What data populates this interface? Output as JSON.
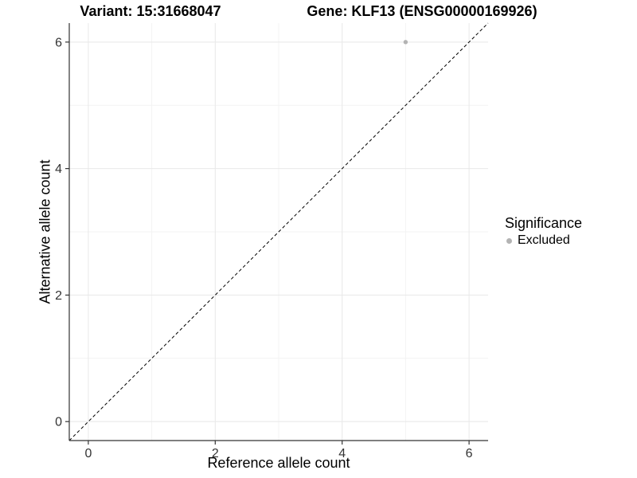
{
  "figure": {
    "title_left": "Variant: 15:31668047",
    "title_right": "Gene: KLF13 (ENSG00000169926)"
  },
  "legend": {
    "title": "Significance",
    "entries": [
      {
        "label": "Excluded",
        "color": "#b3b3b3"
      }
    ]
  },
  "chart_data": {
    "type": "scatter",
    "title": "Variant: 15:31668047 | Gene: KLF13 (ENSG00000169926)",
    "xlabel": "Reference allele count",
    "ylabel": "Alternative allele count",
    "xlim": [
      -0.3,
      6.3
    ],
    "ylim": [
      -0.3,
      6.3
    ],
    "x_ticks": [
      0,
      2,
      4,
      6
    ],
    "y_ticks": [
      0,
      2,
      4,
      6
    ],
    "x_minor_ticks": [
      1,
      3,
      5
    ],
    "y_minor_ticks": [
      1,
      3,
      5
    ],
    "grid": true,
    "legend_position": "right",
    "series": [
      {
        "name": "Excluded",
        "color": "#b3b3b3",
        "point_radius": 2.7,
        "points": [
          {
            "x": 5,
            "y": 6
          }
        ]
      }
    ],
    "reference_line": {
      "kind": "identity",
      "style": "dashed",
      "color": "#000000",
      "from": [
        -0.3,
        -0.3
      ],
      "to": [
        6.3,
        6.3
      ]
    },
    "colors": {
      "background": "#ffffff",
      "grid_major": "#e8e8e8",
      "grid_minor": "#f3f3f3",
      "axis_line": "#333333",
      "tick_mark": "#333333",
      "tick_label": "#333333"
    }
  }
}
